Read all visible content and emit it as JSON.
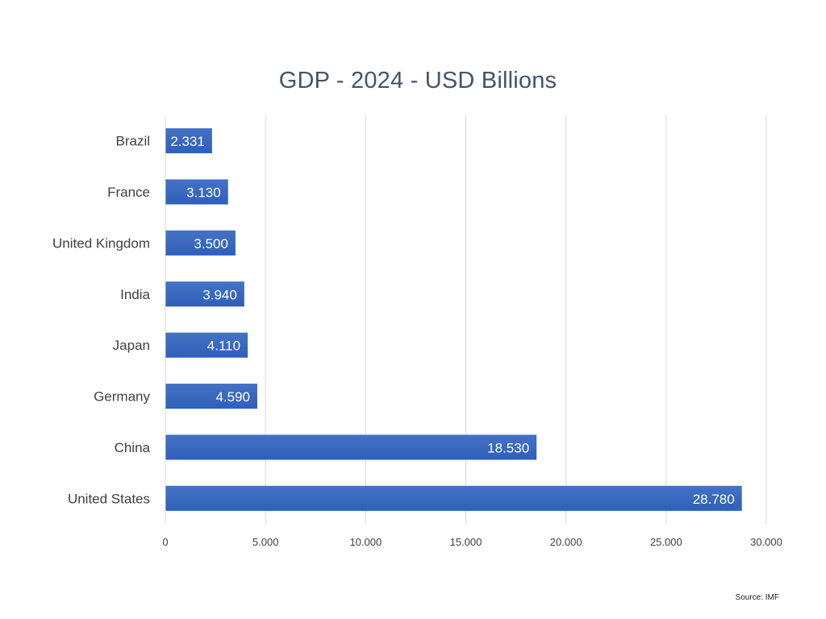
{
  "chart_data": {
    "type": "bar",
    "orientation": "horizontal",
    "title": "GDP - 2024 - USD Billions",
    "categories": [
      "Brazil",
      "France",
      "United Kingdom",
      "India",
      "Japan",
      "Germany",
      "China",
      "United States"
    ],
    "values": [
      2331,
      3130,
      3500,
      3940,
      4110,
      4590,
      18530,
      28780
    ],
    "data_labels": [
      "2.331",
      "3.130",
      "3.500",
      "3.940",
      "4.110",
      "4.590",
      "18.530",
      "28.780"
    ],
    "xlabel": "",
    "ylabel": "",
    "xlim": [
      0,
      30000
    ],
    "x_ticks": [
      0,
      5000,
      10000,
      15000,
      20000,
      25000,
      30000
    ],
    "x_tick_labels": [
      "0",
      "5.000",
      "10.000",
      "15.000",
      "20.000",
      "25.000",
      "30.000"
    ],
    "grid": "vertical",
    "legend": "none",
    "bar_color": "#4472c4",
    "bar_color_dark": "#2f5fba",
    "source": "Source: IMF"
  }
}
